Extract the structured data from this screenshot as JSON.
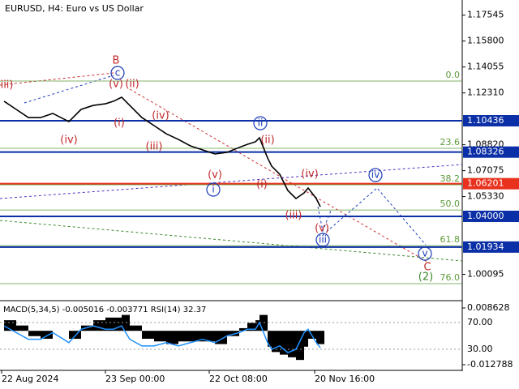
{
  "chart_data": [
    {
      "type": "line",
      "title": "EURUSD, H4:  Euro vs US Dollar",
      "x": [
        1,
        4,
        7,
        10,
        13,
        17,
        20,
        23,
        26,
        28,
        30,
        32,
        35,
        38,
        41,
        44,
        47,
        50,
        53,
        56,
        59,
        61,
        63,
        64,
        66,
        67,
        69,
        71,
        73,
        75,
        76,
        78,
        79
      ],
      "series": [
        {
          "color": "#000000",
          "values": [
            1.1175,
            1.112,
            1.1065,
            1.1065,
            1.1093,
            1.1038,
            1.112,
            1.1147,
            1.1158,
            1.1175,
            1.1202,
            1.1147,
            1.1065,
            1.1011,
            1.0956,
            1.0918,
            1.0874,
            1.0847,
            1.082,
            1.0831,
            1.0864,
            1.0885,
            1.0902,
            1.0929,
            1.0793,
            1.0738,
            1.0683,
            1.0574,
            1.052,
            1.0558,
            1.0591,
            1.052,
            1.0465
          ]
        }
      ],
      "xlim": [
        0,
        114
      ],
      "xticks": [
        {
          "value": 0.4,
          "label": "22 Aug 2024"
        },
        {
          "value": 26,
          "label": "23 Sep 00:00"
        },
        {
          "value": 51.6,
          "label": "22 Oct 08:00"
        },
        {
          "value": 77.6,
          "label": "20 Nov 16:00"
        }
      ],
      "ylim": [
        0.9838,
        1.18565
      ],
      "yticks": [
        1.17545,
        {
          "value": 1.158,
          "label": "1.15800"
        },
        1.14055,
        {
          "value": 1.1231,
          "label": "1.12310"
        },
        {
          "value": 1.0882,
          "label": "1.08820"
        },
        1.07075,
        {
          "value": 1.0533,
          "label": "1.05330"
        },
        1.00095
      ],
      "levels": [
        {
          "value": 1.10436,
          "color": "#0b2fa6"
        },
        {
          "value": 1.08326,
          "color": "#0b2fa6"
        },
        {
          "value": 1.06201,
          "color": "#e8321e"
        },
        {
          "value": 1.04,
          "label": "1.04000",
          "color": "#0b2fa6"
        },
        {
          "value": 1.01934,
          "color": "#0b2fa6"
        }
      ],
      "fib_levels": [
        {
          "ratio_label": "0.0",
          "price": 1.1311
        },
        {
          "ratio_label": "23.6",
          "price": 1.0858
        },
        {
          "ratio_label": "38.2",
          "price": 1.0613
        },
        {
          "ratio_label": "50.0",
          "price": 1.0443
        },
        {
          "ratio_label": "61.8",
          "price": 1.0203
        },
        {
          "ratio_label": "76.0",
          "price": 0.9947
        }
      ],
      "fib_color": "#5e9a3a",
      "annotations": [
        {
          "text": "(iii)",
          "color": "#c0282b"
        },
        {
          "text": "B",
          "color": "#c0282b"
        },
        {
          "text": "c",
          "color": "#1a3bb5",
          "circled": true
        },
        {
          "text": "(v)",
          "color": "#c0282b"
        },
        {
          "text": "(ii)",
          "color": "#c0282b"
        },
        {
          "text": "(i)",
          "color": "#c0282b"
        },
        {
          "text": "(iv)",
          "color": "#c0282b"
        },
        {
          "text": "(iv)",
          "color": "#c0282b"
        },
        {
          "text": "(iii)",
          "color": "#c0282b"
        },
        {
          "text": "ii",
          "color": "#1a3bb5",
          "circled": true
        },
        {
          "text": "(ii)",
          "color": "#c0282b"
        },
        {
          "text": "(v)",
          "color": "#c0282b"
        },
        {
          "text": "i",
          "color": "#1a3bb5",
          "circled": true
        },
        {
          "text": "(i)",
          "color": "#c0282b"
        },
        {
          "text": "(iv)",
          "color": "#c0282b"
        },
        {
          "text": "iv",
          "color": "#1a3bb5",
          "circled": true
        },
        {
          "text": "(iii)",
          "color": "#c0282b"
        },
        {
          "text": "(v)",
          "color": "#c0282b"
        },
        {
          "text": "iii",
          "color": "#1a3bb5",
          "circled": true
        },
        {
          "text": "v",
          "color": "#1a3bb5",
          "circled": true
        },
        {
          "text": "C",
          "color": "#c0282b"
        },
        {
          "text": "(2)",
          "color": "#3a8a2a"
        }
      ]
    },
    {
      "type": "macd",
      "title": "MACD(5,34,5) -0.005016 -0.003771 RSI(14) 32.37",
      "x": [
        1,
        4,
        7,
        10,
        13,
        17,
        20,
        23,
        26,
        28,
        30,
        32,
        35,
        38,
        41,
        44,
        47,
        50,
        53,
        56,
        59,
        61,
        63,
        64,
        66,
        67,
        69,
        71,
        73,
        75,
        76,
        78,
        79
      ],
      "macd": {
        "color": "#000000",
        "values": [
          0.004,
          0.002,
          -0.002,
          -0.003,
          0,
          -0.003,
          0.002,
          0.004,
          0.005,
          0.005,
          0.006,
          0.002,
          -0.003,
          -0.004,
          -0.005,
          -0.004,
          -0.004,
          -0.004,
          -0.005,
          -0.002,
          0.001,
          0.003,
          0.004,
          0.006,
          -0.006,
          -0.008,
          -0.009,
          -0.01,
          -0.011,
          -0.006,
          -0.003,
          -0.005,
          -0.005016
        ]
      },
      "rsi": {
        "color": "#1e90ff",
        "values": [
          65,
          55,
          45,
          45,
          55,
          40,
          60,
          65,
          60,
          60,
          65,
          45,
          35,
          35,
          40,
          35,
          40,
          45,
          40,
          50,
          55,
          60,
          60,
          70,
          40,
          30,
          35,
          25,
          30,
          55,
          60,
          40,
          32.37
        ]
      },
      "ylim": [
        -0.01432,
        0.01108
      ],
      "yticks": [
        0.008628,
        -0.012788
      ],
      "y2lim": [
        0.9,
        101.5
      ],
      "y2ticks": [
        {
          "value": 70,
          "label": "70.00"
        },
        {
          "value": 30,
          "label": "30.00"
        }
      ],
      "xlim": [
        0,
        114
      ]
    }
  ]
}
